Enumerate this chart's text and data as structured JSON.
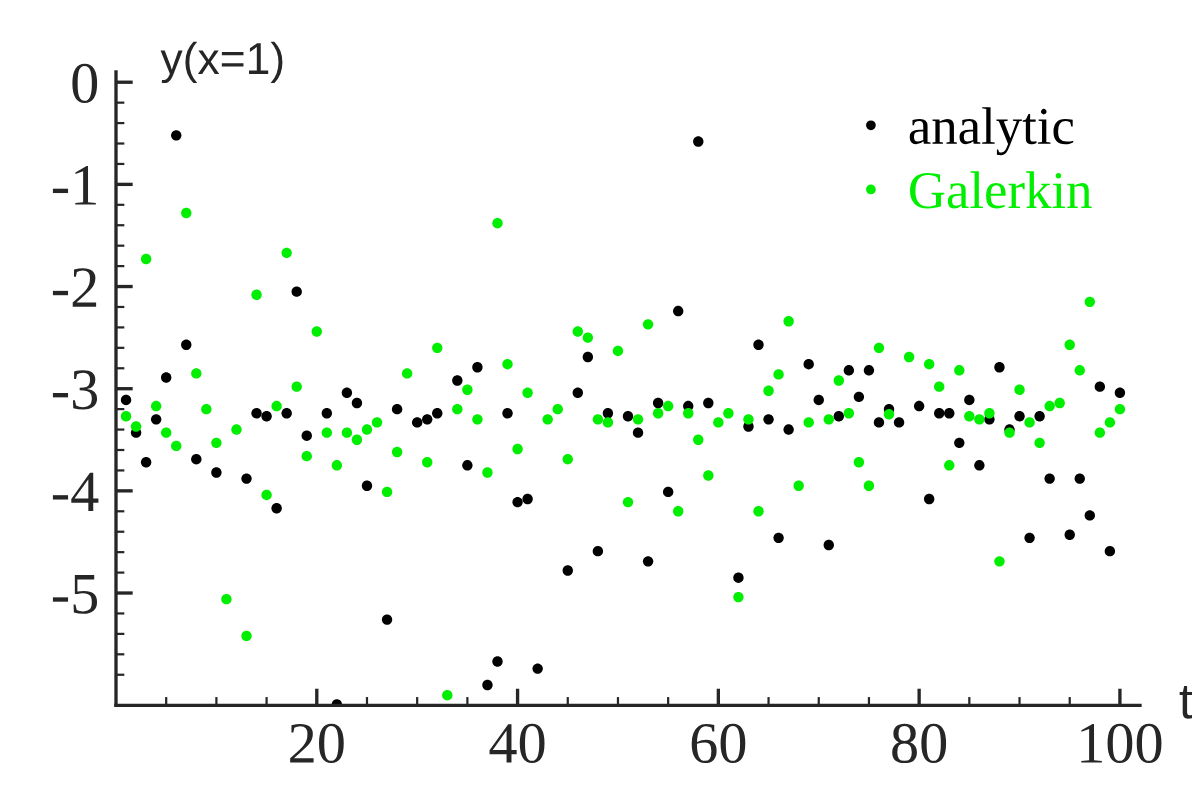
{
  "chart_data": {
    "type": "scatter",
    "xlabel": "t",
    "ylabel": "y(x=1)",
    "xlim": [
      0,
      102
    ],
    "ylim": [
      -6.1,
      0.1
    ],
    "xticks": [
      {
        "value": 5,
        "label": null
      },
      {
        "value": 10,
        "label": null
      },
      {
        "value": 15,
        "label": null
      },
      20,
      {
        "value": 25,
        "label": null
      },
      {
        "value": 30,
        "label": null
      },
      {
        "value": 35,
        "label": null
      },
      40,
      {
        "value": 45,
        "label": null
      },
      {
        "value": 50,
        "label": null
      },
      {
        "value": 55,
        "label": null
      },
      60,
      {
        "value": 65,
        "label": null
      },
      {
        "value": 70,
        "label": null
      },
      {
        "value": 75,
        "label": null
      },
      80,
      {
        "value": 85,
        "label": null
      },
      {
        "value": 90,
        "label": null
      },
      {
        "value": 95,
        "label": null
      },
      100
    ],
    "yticks": [
      -5,
      {
        "value": -5.8,
        "label": null
      },
      {
        "value": -5.6,
        "label": null
      },
      {
        "value": -5.4,
        "label": null
      },
      {
        "value": -5.2,
        "label": null
      },
      -4,
      {
        "value": -4.8,
        "label": null
      },
      {
        "value": -4.6,
        "label": null
      },
      {
        "value": -4.4,
        "label": null
      },
      {
        "value": -4.2,
        "label": null
      },
      -3,
      {
        "value": -3.8,
        "label": null
      },
      {
        "value": -3.6,
        "label": null
      },
      {
        "value": -3.4,
        "label": null
      },
      {
        "value": -3.2,
        "label": null
      },
      -2,
      {
        "value": -2.8,
        "label": null
      },
      {
        "value": -2.6,
        "label": null
      },
      {
        "value": -2.4,
        "label": null
      },
      {
        "value": -2.2,
        "label": null
      },
      -1,
      {
        "value": -1.8,
        "label": null
      },
      {
        "value": -1.6,
        "label": null
      },
      {
        "value": -1.4,
        "label": null
      },
      {
        "value": -1.2,
        "label": null
      },
      0,
      {
        "value": -0.8,
        "label": null
      },
      {
        "value": -0.6,
        "label": null
      },
      {
        "value": -0.4,
        "label": null
      },
      {
        "value": -0.2,
        "label": null
      }
    ],
    "grid": false,
    "legend": "top right",
    "marker": "circle",
    "series": [
      {
        "name": "analytic",
        "color": "#000000",
        "x": [
          1,
          2,
          3,
          4,
          5,
          6,
          7,
          8,
          10,
          12,
          13,
          14,
          15,
          16,
          17,
          18,
          19,
          21,
          22,
          23,
          24,
          25,
          27,
          28,
          30,
          31,
          32,
          34,
          35,
          36,
          37,
          38,
          39,
          40,
          41,
          42,
          44,
          45,
          46,
          47,
          48,
          49,
          51,
          52,
          53,
          54,
          55,
          56,
          57,
          58,
          59,
          62,
          63,
          64,
          65,
          66,
          67,
          69,
          70,
          71,
          72,
          73,
          74,
          75,
          76,
          77,
          78,
          80,
          81,
          82,
          83,
          84,
          85,
          86,
          87,
          88,
          89,
          90,
          91,
          92,
          93,
          95,
          96,
          97,
          98,
          99,
          100
        ],
        "values": [
          -3.11,
          -3.43,
          -3.72,
          -3.3,
          -2.89,
          -0.52,
          -2.57,
          -3.69,
          -3.82,
          null,
          -3.88,
          -3.24,
          -3.27,
          -4.17,
          -3.24,
          -2.05,
          -3.46,
          -3.24,
          -6.09,
          -3.04,
          -3.14,
          -3.95,
          -5.26,
          -3.2,
          -3.33,
          -3.3,
          -3.24,
          -2.92,
          -3.75,
          -2.79,
          -5.9,
          -5.67,
          -3.24,
          -4.11,
          -4.08,
          -5.74,
          null,
          -4.78,
          -3.04,
          -2.69,
          -4.59,
          -3.24,
          -3.27,
          -3.43,
          -4.69,
          -3.14,
          -4.01,
          -2.24,
          -3.17,
          -0.58,
          -3.14,
          -4.85,
          -3.37,
          -2.57,
          -3.3,
          -4.46,
          -3.4,
          -2.76,
          -3.11,
          -4.53,
          -3.27,
          -2.82,
          -3.08,
          -2.82,
          -3.33,
          -3.2,
          -3.33,
          -3.17,
          -4.08,
          -3.24,
          -3.24,
          -3.53,
          -3.11,
          -3.75,
          -3.3,
          -2.79,
          -3.4,
          -3.27,
          -4.46,
          -3.27,
          -3.88,
          -4.43,
          -3.88,
          -4.24,
          -2.98,
          -4.59,
          -3.04
        ]
      },
      {
        "name": "Galerkin",
        "color": "#00ee00",
        "x": [
          1,
          2,
          3,
          4,
          5,
          6,
          7,
          8,
          9,
          10,
          11,
          12,
          13,
          14,
          15,
          16,
          17,
          18,
          19,
          20,
          21,
          22,
          23,
          24,
          25,
          26,
          27,
          28,
          29,
          31,
          32,
          33,
          34,
          35,
          36,
          37,
          38,
          39,
          40,
          41,
          43,
          44,
          45,
          46,
          47,
          48,
          49,
          50,
          51,
          52,
          53,
          54,
          55,
          56,
          57,
          58,
          59,
          60,
          61,
          62,
          63,
          64,
          65,
          66,
          67,
          68,
          69,
          71,
          72,
          73,
          74,
          75,
          76,
          77,
          79,
          81,
          82,
          83,
          84,
          85,
          86,
          87,
          88,
          89,
          90,
          91,
          92,
          93,
          94,
          95,
          96,
          97,
          98,
          99,
          100
        ],
        "values": [
          -3.27,
          -3.37,
          -1.73,
          -3.17,
          -3.43,
          -3.56,
          -1.28,
          -2.85,
          -3.2,
          -3.53,
          -5.06,
          -3.4,
          -5.42,
          -2.08,
          -4.04,
          -3.17,
          -1.67,
          -2.98,
          -3.66,
          -2.44,
          -3.43,
          -3.75,
          -3.43,
          -3.5,
          -3.4,
          -3.33,
          -4.01,
          -3.62,
          -2.85,
          -3.72,
          -2.6,
          -6.0,
          -3.2,
          -3.01,
          -3.3,
          -3.82,
          -1.38,
          -2.76,
          -3.59,
          -3.04,
          -3.3,
          -3.2,
          -3.69,
          -2.44,
          -2.5,
          -3.3,
          -3.33,
          -2.63,
          -4.11,
          -3.3,
          -2.37,
          -3.24,
          -3.17,
          -4.2,
          -3.24,
          -3.5,
          -3.85,
          -3.33,
          -3.24,
          -5.04,
          -3.3,
          -4.2,
          -3.02,
          -2.86,
          -2.34,
          -3.95,
          -3.33,
          -3.3,
          -2.92,
          -3.24,
          -3.72,
          -3.95,
          -2.6,
          -3.25,
          -2.69,
          -2.76,
          -2.98,
          -3.75,
          -2.82,
          -3.27,
          -3.3,
          -3.24,
          -4.69,
          -3.43,
          -3.01,
          -3.33,
          -3.53,
          -3.17,
          -3.14,
          -2.57,
          -2.82,
          -2.15,
          -3.43,
          -3.33,
          -3.2
        ]
      }
    ]
  }
}
